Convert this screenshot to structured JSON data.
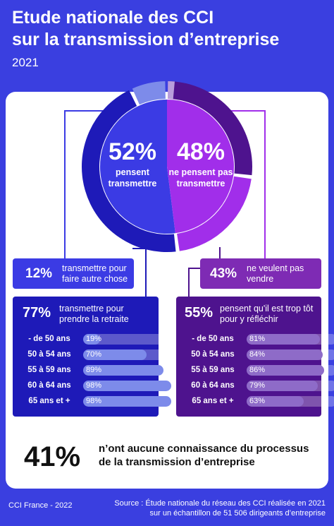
{
  "header": {
    "title_line1": "Etude nationale des CCI",
    "title_line2": "sur la transmission d’entreprise",
    "year": "2021"
  },
  "colors": {
    "background": "#3A3FE0",
    "blue_main": "#3B3BE4",
    "blue_dark": "#1E1AB8",
    "blue_light": "#7D8BEA",
    "purple_main": "#A12EEA",
    "purple_dark": "#4E138E",
    "purple_light": "#B89DDC"
  },
  "chart_data": {
    "type": "pie",
    "slices": [
      {
        "label": "pensent transmettre",
        "value": 52
      },
      {
        "label": "ne pensent pas transmettre",
        "value": 48
      }
    ],
    "outer_ring": [
      {
        "label": "transmettre pour prendre la retraite",
        "value": 77,
        "group": "pensent transmettre"
      },
      {
        "label": "transmettre pour faire autre chose",
        "value": 12,
        "group": "pensent transmettre"
      },
      {
        "label": "ne veulent pas vendre",
        "value": 43,
        "group": "ne pensent pas transmettre"
      },
      {
        "label": "pensent qu'il est trop tôt pour y réfléchir",
        "value": 55,
        "group": "ne pensent pas transmettre"
      }
    ]
  },
  "donut": {
    "left_pct": "52%",
    "left_sub1": "pensent",
    "left_sub2": "transmettre",
    "right_pct": "48%",
    "right_sub1": "ne pensent pas",
    "right_sub2": "transmettre"
  },
  "boxes": {
    "b12": {
      "pct": "12%",
      "line1": "transmettre pour",
      "line2": "faire autre chose"
    },
    "b43": {
      "pct": "43%",
      "line1": "ne veulent pas",
      "line2": "vendre"
    },
    "b77": {
      "pct": "77%",
      "line1": "transmettre pour",
      "line2": "prendre la retraite"
    },
    "b55": {
      "pct": "55%",
      "line1": "pensent qu'il est trop tôt",
      "line2": "pour y réfléchir"
    }
  },
  "age_bars": {
    "left": [
      {
        "label": "- de 50 ans",
        "value": 19,
        "text": "19%"
      },
      {
        "label": "50 à 54 ans",
        "value": 70,
        "text": "70%"
      },
      {
        "label": "55 à 59 ans",
        "value": 89,
        "text": "89%"
      },
      {
        "label": "60 à 64 ans",
        "value": 98,
        "text": "98%"
      },
      {
        "label": "65 ans et +",
        "value": 98,
        "text": "98%"
      }
    ],
    "right": [
      {
        "label": "- de 50 ans",
        "value": 81,
        "text": "81%"
      },
      {
        "label": "50 à 54 ans",
        "value": 84,
        "text": "84%"
      },
      {
        "label": "55 à 59 ans",
        "value": 86,
        "text": "86%"
      },
      {
        "label": "60 à 64 ans",
        "value": 79,
        "text": "79%"
      },
      {
        "label": "65 ans et +",
        "value": 63,
        "text": "63%"
      }
    ]
  },
  "stat41": {
    "pct": "41%",
    "line1": "n’ont aucune connaissance du processus",
    "line2": "de la transmission d’entreprise"
  },
  "footer": {
    "left": "CCI France - 2022",
    "right_line1": "Source : Étude nationale du réseau des CCI réalisée en 2021",
    "right_line2": "sur un échantillon de 51 506 dirigeants d’entreprise"
  }
}
